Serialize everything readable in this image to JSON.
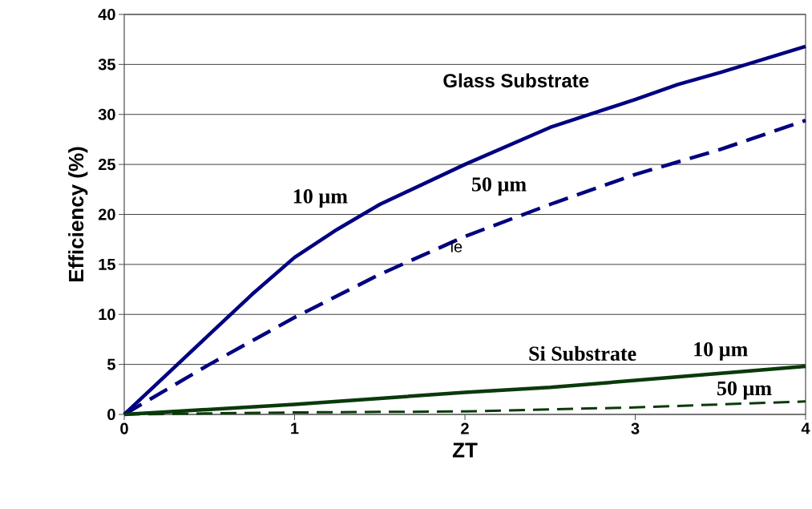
{
  "chart_data": {
    "type": "line",
    "xlabel": "ZT",
    "ylabel": "Efficiency (%)",
    "xlim": [
      0,
      4
    ],
    "xticks": [
      0,
      1,
      2,
      3,
      4
    ],
    "ylim": [
      0,
      40
    ],
    "yticks": [
      0,
      5,
      10,
      15,
      20,
      25,
      30,
      35,
      40
    ],
    "grid": "y",
    "series": [
      {
        "color": "#000080",
        "line_style": "solid",
        "x": [
          0,
          0.25,
          0.5,
          0.75,
          1,
          1.25,
          1.5,
          2,
          2.5,
          3,
          3.25,
          3.5,
          4
        ],
        "values": [
          0,
          4,
          8,
          12,
          15.7,
          18.5,
          21,
          25,
          28.7,
          31.5,
          33,
          34.2,
          36.8
        ]
      },
      {
        "color": "#000080",
        "line_style": "dashed",
        "x": [
          0,
          0.5,
          1,
          1.5,
          2,
          2.5,
          3,
          3.5,
          4
        ],
        "values": [
          0,
          5,
          9.7,
          14,
          17.8,
          21,
          24,
          26.5,
          29.4
        ]
      },
      {
        "color": "#0a3a0a",
        "line_style": "solid",
        "x": [
          0,
          1,
          2,
          2.5,
          3,
          4
        ],
        "values": [
          0,
          1,
          2.2,
          2.7,
          3.4,
          4.8
        ]
      },
      {
        "color": "#0a3a0a",
        "line_style": "dashed",
        "x": [
          0,
          0.5,
          1,
          2,
          2.5,
          3,
          4
        ],
        "values": [
          0,
          0.1,
          0.2,
          0.3,
          0.5,
          0.7,
          1.3
        ]
      }
    ],
    "annotations": [
      "Glass Substrate",
      "10 µm",
      "50 µm",
      "le",
      "Si Substrate",
      "10 µm",
      "50 µm"
    ]
  }
}
